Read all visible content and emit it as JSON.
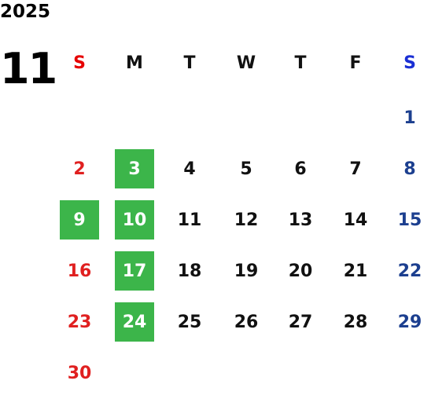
{
  "year": "2025",
  "month": "11",
  "weekdays": [
    "S",
    "M",
    "T",
    "W",
    "T",
    "F",
    "S"
  ],
  "colors": {
    "sunday": "#e02020",
    "saturday": "#1c3f8f",
    "highlight": "#3cb54a"
  },
  "weeks": [
    [
      null,
      null,
      null,
      null,
      null,
      null,
      "1"
    ],
    [
      "2",
      "3",
      "4",
      "5",
      "6",
      "7",
      "8"
    ],
    [
      "9",
      "10",
      "11",
      "12",
      "13",
      "14",
      "15"
    ],
    [
      "16",
      "17",
      "18",
      "19",
      "20",
      "21",
      "22"
    ],
    [
      "23",
      "24",
      "25",
      "26",
      "27",
      "28",
      "29"
    ],
    [
      "30",
      null,
      null,
      null,
      null,
      null,
      null
    ]
  ],
  "highlighted_days": [
    "3",
    "9",
    "10",
    "17",
    "24"
  ]
}
